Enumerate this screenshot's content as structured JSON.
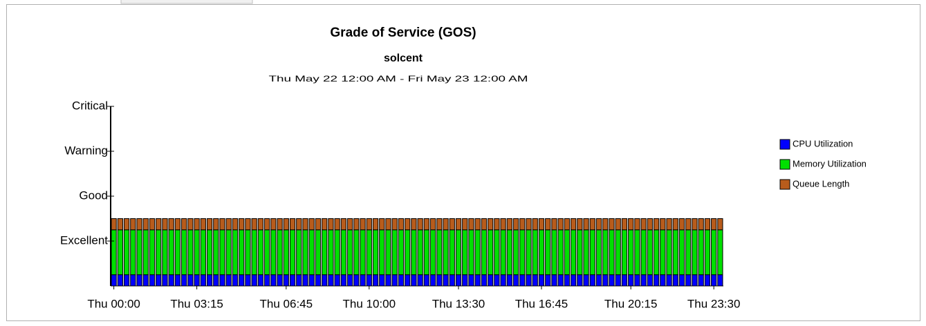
{
  "chart_data": {
    "type": "stacked_bar",
    "title": "Grade of Service (GOS)",
    "subtitle": "solcent",
    "date_range": "Thu May 22 12:00 AM - Fri May 23 12:00 AM",
    "categories": [
      "Thu 00:00",
      null,
      null,
      null,
      null,
      null,
      null,
      null,
      null,
      null,
      null,
      null,
      null,
      "Thu 03:15",
      null,
      null,
      null,
      null,
      null,
      null,
      null,
      null,
      null,
      null,
      null,
      null,
      null,
      "Thu 06:45",
      null,
      null,
      null,
      null,
      null,
      null,
      null,
      null,
      null,
      null,
      null,
      null,
      "Thu 10:00",
      null,
      null,
      null,
      null,
      null,
      null,
      null,
      null,
      null,
      null,
      null,
      null,
      null,
      "Thu 13:30",
      null,
      null,
      null,
      null,
      null,
      null,
      null,
      null,
      null,
      null,
      null,
      null,
      "Thu 16:45",
      null,
      null,
      null,
      null,
      null,
      null,
      null,
      null,
      null,
      null,
      null,
      null,
      null,
      "Thu 20:15",
      null,
      null,
      null,
      null,
      null,
      null,
      null,
      null,
      null,
      null,
      null,
      null,
      "Thu 23:30",
      null
    ],
    "series": [
      {
        "name": "CPU Utilization",
        "color": "#0000ff",
        "values": [
          0.25,
          0.25,
          0.25,
          0.25,
          0.25,
          0.25,
          0.25,
          0.25,
          0.25,
          0.25,
          0.25,
          0.25,
          0.25,
          0.25,
          0.25,
          0.25,
          0.25,
          0.25,
          0.25,
          0.25,
          0.25,
          0.25,
          0.25,
          0.25,
          0.25,
          0.25,
          0.25,
          0.25,
          0.25,
          0.25,
          0.25,
          0.25,
          0.25,
          0.25,
          0.25,
          0.25,
          0.25,
          0.25,
          0.25,
          0.25,
          0.25,
          0.25,
          0.25,
          0.25,
          0.25,
          0.25,
          0.25,
          0.25,
          0.25,
          0.25,
          0.25,
          0.25,
          0.25,
          0.25,
          0.25,
          0.25,
          0.25,
          0.25,
          0.25,
          0.25,
          0.25,
          0.25,
          0.25,
          0.25,
          0.25,
          0.25,
          0.25,
          0.25,
          0.25,
          0.25,
          0.25,
          0.25,
          0.25,
          0.25,
          0.25,
          0.25,
          0.25,
          0.25,
          0.25,
          0.25,
          0.25,
          0.25,
          0.25,
          0.25,
          0.25,
          0.25,
          0.25,
          0.25,
          0.25,
          0.25,
          0.25,
          0.25,
          0.25,
          0.25,
          0.25,
          0.25
        ]
      },
      {
        "name": "Memory Utilization",
        "color": "#00e000",
        "values": [
          1,
          1,
          1,
          1,
          1,
          1,
          1,
          1,
          1,
          1,
          1,
          1,
          1,
          1,
          1,
          1,
          1,
          1,
          1,
          1,
          1,
          1,
          1,
          1,
          1,
          1,
          1,
          1,
          1,
          1,
          1,
          1,
          1,
          1,
          1,
          1,
          1,
          1,
          1,
          1,
          1,
          1,
          1,
          1,
          1,
          1,
          1,
          1,
          1,
          1,
          1,
          1,
          1,
          1,
          1,
          1,
          1,
          1,
          1,
          1,
          1,
          1,
          1,
          1,
          1,
          1,
          1,
          1,
          1,
          1,
          1,
          1,
          1,
          1,
          1,
          1,
          1,
          1,
          1,
          1,
          1,
          1,
          1,
          1,
          1,
          1,
          1,
          1,
          1,
          1,
          1,
          1,
          1,
          1,
          1,
          1
        ]
      },
      {
        "name": "Queue Length",
        "color": "#b85c1c",
        "values": [
          0.25,
          0.25,
          0.25,
          0.25,
          0.25,
          0.25,
          0.25,
          0.25,
          0.25,
          0.25,
          0.25,
          0.25,
          0.25,
          0.25,
          0.25,
          0.25,
          0.25,
          0.25,
          0.25,
          0.25,
          0.25,
          0.25,
          0.25,
          0.25,
          0.25,
          0.25,
          0.25,
          0.25,
          0.25,
          0.25,
          0.25,
          0.25,
          0.25,
          0.25,
          0.25,
          0.25,
          0.25,
          0.25,
          0.25,
          0.25,
          0.25,
          0.25,
          0.25,
          0.25,
          0.25,
          0.25,
          0.25,
          0.25,
          0.25,
          0.25,
          0.25,
          0.25,
          0.25,
          0.25,
          0.25,
          0.25,
          0.25,
          0.25,
          0.25,
          0.25,
          0.25,
          0.25,
          0.25,
          0.25,
          0.25,
          0.25,
          0.25,
          0.25,
          0.25,
          0.25,
          0.25,
          0.25,
          0.25,
          0.25,
          0.25,
          0.25,
          0.25,
          0.25,
          0.25,
          0.25,
          0.25,
          0.25,
          0.25,
          0.25,
          0.25,
          0.25,
          0.25,
          0.25,
          0.25,
          0.25,
          0.25,
          0.25,
          0.25,
          0.25,
          0.25,
          0.25
        ]
      }
    ],
    "ylim": [
      0,
      4
    ],
    "yticks": [
      {
        "value": 1,
        "label": "Excellent"
      },
      {
        "value": 2,
        "label": "Good"
      },
      {
        "value": 3,
        "label": "Warning"
      },
      {
        "value": 4,
        "label": "Critical"
      }
    ],
    "legend": "right"
  }
}
